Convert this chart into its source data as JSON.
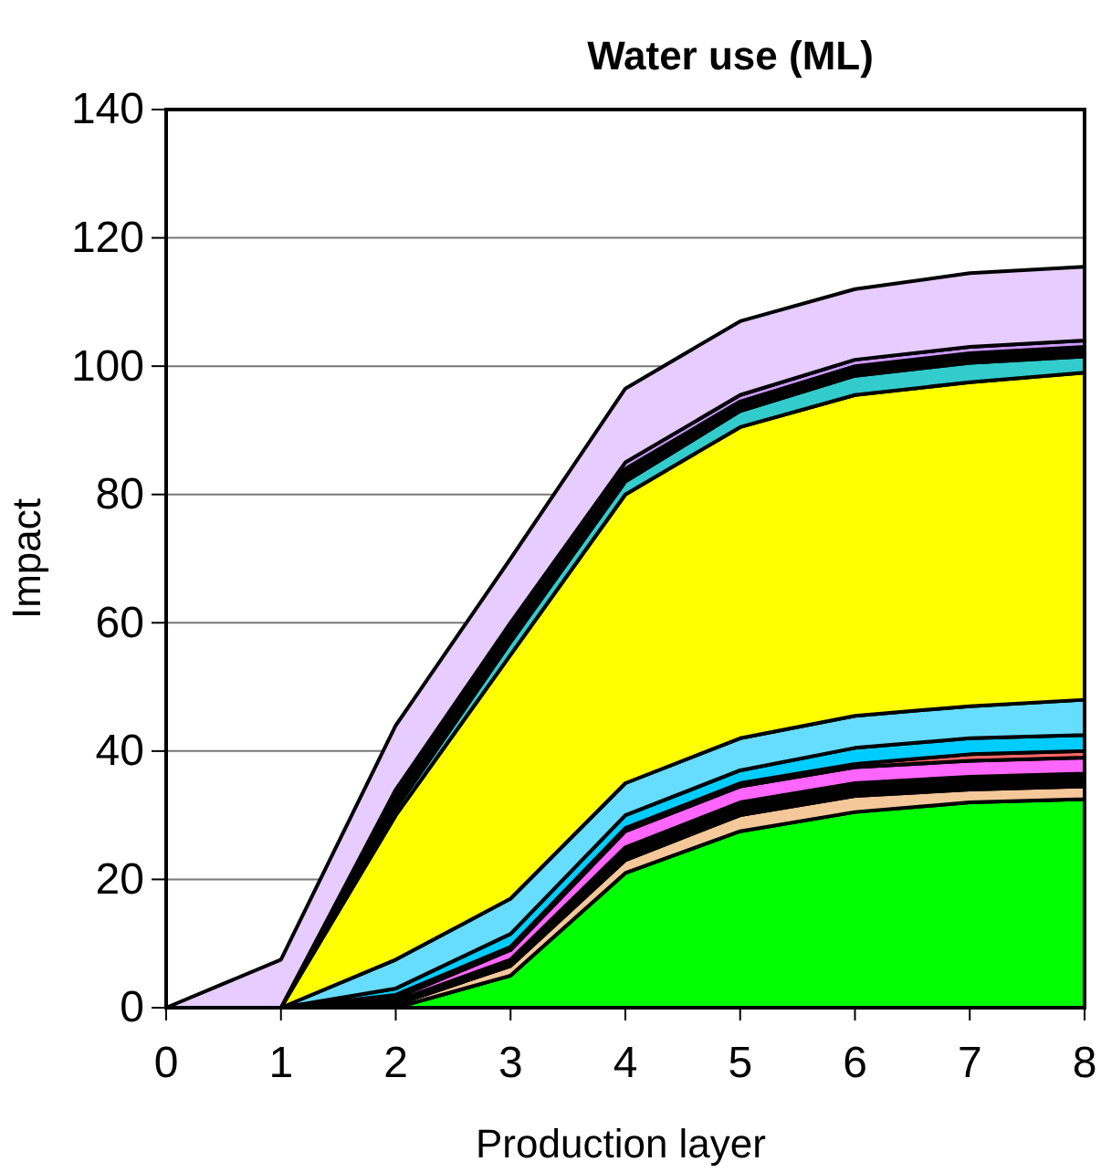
{
  "chart_data": {
    "type": "area",
    "title": "Water use (ML)",
    "xlabel": "Production layer",
    "ylabel": "Impact",
    "x": [
      0,
      1,
      2,
      3,
      4,
      5,
      6,
      7,
      8
    ],
    "xlim": [
      0,
      8
    ],
    "xticks": [
      0,
      1,
      2,
      3,
      4,
      5,
      6,
      7,
      8
    ],
    "ylim": [
      0,
      140
    ],
    "yticks": [
      0,
      20,
      40,
      60,
      80,
      100,
      120,
      140
    ],
    "grid": "y",
    "stacked": true,
    "series": [
      {
        "color": "#00ff00",
        "values": [
          0,
          0,
          0,
          5,
          21,
          27.5,
          30.5,
          32,
          32.5
        ]
      },
      {
        "color": "#f5c89a",
        "values": [
          0,
          0,
          0.5,
          1.5,
          2,
          2.5,
          2.5,
          2,
          2
        ]
      },
      {
        "color": "#000000",
        "values": [
          0,
          0,
          0.5,
          1,
          2,
          2,
          2,
          2,
          2
        ]
      },
      {
        "color": "#ff66ff",
        "values": [
          0,
          0,
          0.5,
          1.5,
          2.5,
          2.5,
          2.5,
          2.5,
          2.5
        ]
      },
      {
        "color": "#ff6666",
        "values": [
          0,
          0,
          0.5,
          0.5,
          0.5,
          0.5,
          0.5,
          1,
          1
        ]
      },
      {
        "color": "#00ccff",
        "values": [
          0,
          0,
          1,
          2,
          2,
          2,
          2.5,
          2.5,
          2.5
        ]
      },
      {
        "color": "#66ddff",
        "values": [
          0,
          0,
          4.5,
          5.5,
          5,
          5,
          5,
          5,
          5.5
        ]
      },
      {
        "color": "#ffff00",
        "values": [
          0,
          0,
          22.5,
          38,
          45,
          48.5,
          50,
          50.5,
          51
        ]
      },
      {
        "color": "#33cccc",
        "values": [
          0,
          0,
          1,
          2,
          2,
          2.5,
          3,
          3,
          2.5
        ]
      },
      {
        "color": "#000000",
        "values": [
          0,
          0,
          2,
          2,
          2,
          1.5,
          1.5,
          1.5,
          1.5
        ]
      },
      {
        "color": "#cc99ff",
        "values": [
          0,
          0,
          1,
          1,
          1,
          1,
          1,
          1,
          1
        ]
      },
      {
        "color": "#e6ccff",
        "values": [
          0,
          7.5,
          10,
          10,
          11.5,
          11.5,
          11,
          11.5,
          11.5
        ]
      }
    ]
  }
}
